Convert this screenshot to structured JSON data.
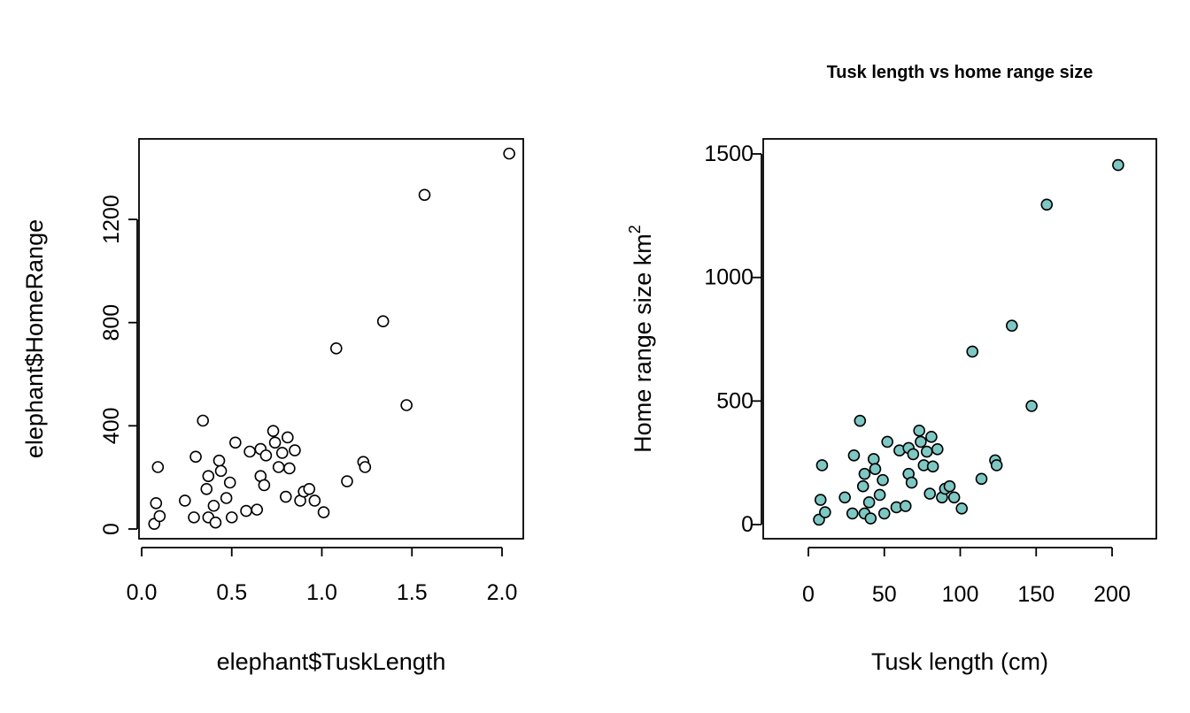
{
  "chart_data": [
    {
      "type": "scatter",
      "title": "",
      "xlabel": "elephant$TuskLength",
      "ylabel": "elephant$HomeRange",
      "xlim": [
        0.0,
        2.0
      ],
      "ylim": [
        0,
        1400
      ],
      "xticks": [
        "0.0",
        "0.5",
        "1.0",
        "1.5",
        "2.0"
      ],
      "yticks": [
        "0",
        "400",
        "800",
        "1200"
      ],
      "grid": false,
      "marker": {
        "shape": "circle",
        "fill": "#ffffff",
        "stroke": "#000000"
      },
      "points": [
        [
          0.07,
          20
        ],
        [
          0.08,
          100
        ],
        [
          0.09,
          240
        ],
        [
          0.1,
          50
        ],
        [
          0.24,
          110
        ],
        [
          0.29,
          45
        ],
        [
          0.3,
          280
        ],
        [
          0.34,
          420
        ],
        [
          0.36,
          155
        ],
        [
          0.37,
          205
        ],
        [
          0.37,
          45
        ],
        [
          0.4,
          90
        ],
        [
          0.41,
          25
        ],
        [
          0.43,
          265
        ],
        [
          0.44,
          225
        ],
        [
          0.47,
          120
        ],
        [
          0.49,
          180
        ],
        [
          0.5,
          45
        ],
        [
          0.52,
          335
        ],
        [
          0.58,
          70
        ],
        [
          0.6,
          300
        ],
        [
          0.64,
          75
        ],
        [
          0.66,
          310
        ],
        [
          0.66,
          205
        ],
        [
          0.68,
          170
        ],
        [
          0.69,
          285
        ],
        [
          0.73,
          380
        ],
        [
          0.74,
          335
        ],
        [
          0.76,
          240
        ],
        [
          0.78,
          295
        ],
        [
          0.8,
          125
        ],
        [
          0.81,
          355
        ],
        [
          0.82,
          235
        ],
        [
          0.85,
          305
        ],
        [
          0.88,
          110
        ],
        [
          0.9,
          145
        ],
        [
          0.93,
          155
        ],
        [
          0.96,
          110
        ],
        [
          1.01,
          65
        ],
        [
          1.08,
          700
        ],
        [
          1.14,
          185
        ],
        [
          1.23,
          260
        ],
        [
          1.24,
          240
        ],
        [
          1.34,
          805
        ],
        [
          1.47,
          480
        ],
        [
          1.57,
          1295
        ],
        [
          2.04,
          1455
        ]
      ]
    },
    {
      "type": "scatter",
      "title": "Tusk length vs home range size",
      "xlabel": "Tusk length (cm)",
      "ylabel": "Home range size km",
      "ylabel_superscript": "2",
      "xlim": [
        0,
        200
      ],
      "ylim": [
        0,
        1500
      ],
      "xticks": [
        "0",
        "50",
        "100",
        "150",
        "200"
      ],
      "yticks": [
        "0",
        "500",
        "1000",
        "1500"
      ],
      "grid": false,
      "marker": {
        "shape": "circle",
        "fill": "#7ec8c4",
        "stroke": "#000000"
      },
      "points": [
        [
          7,
          20
        ],
        [
          8,
          100
        ],
        [
          9,
          240
        ],
        [
          11,
          50
        ],
        [
          24,
          110
        ],
        [
          29,
          45
        ],
        [
          30,
          280
        ],
        [
          34,
          420
        ],
        [
          36,
          155
        ],
        [
          37,
          205
        ],
        [
          37,
          45
        ],
        [
          40,
          90
        ],
        [
          41,
          25
        ],
        [
          43,
          265
        ],
        [
          44,
          225
        ],
        [
          47,
          120
        ],
        [
          49,
          180
        ],
        [
          50,
          45
        ],
        [
          52,
          335
        ],
        [
          58,
          70
        ],
        [
          60,
          300
        ],
        [
          64,
          75
        ],
        [
          66,
          310
        ],
        [
          66,
          205
        ],
        [
          68,
          170
        ],
        [
          69,
          285
        ],
        [
          73,
          380
        ],
        [
          74,
          335
        ],
        [
          76,
          240
        ],
        [
          78,
          295
        ],
        [
          80,
          125
        ],
        [
          81,
          355
        ],
        [
          82,
          235
        ],
        [
          85,
          305
        ],
        [
          88,
          110
        ],
        [
          90,
          145
        ],
        [
          93,
          155
        ],
        [
          96,
          110
        ],
        [
          101,
          65
        ],
        [
          108,
          700
        ],
        [
          114,
          185
        ],
        [
          123,
          260
        ],
        [
          124,
          240
        ],
        [
          134,
          805
        ],
        [
          147,
          480
        ],
        [
          157,
          1295
        ],
        [
          204,
          1455
        ]
      ]
    }
  ]
}
